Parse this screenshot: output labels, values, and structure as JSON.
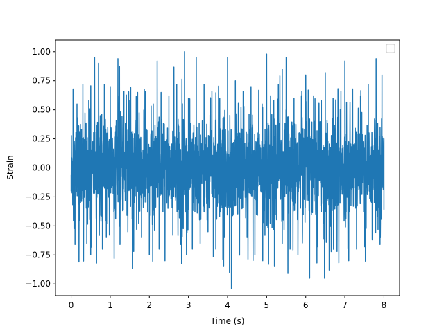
{
  "chart_data": {
    "type": "line",
    "title": "",
    "xlabel": "Time (s)",
    "ylabel": "Strain",
    "xlim": [
      -0.4,
      8.4
    ],
    "ylim": [
      -1.1,
      1.1
    ],
    "x_ticks": [
      0,
      1,
      2,
      3,
      4,
      5,
      6,
      7,
      8
    ],
    "x_tick_labels": [
      "0",
      "1",
      "2",
      "3",
      "4",
      "5",
      "6",
      "7",
      "8"
    ],
    "y_ticks": [
      -1.0,
      -0.75,
      -0.5,
      -0.25,
      0.0,
      0.25,
      0.5,
      0.75,
      1.0
    ],
    "y_tick_labels": [
      "−1.00",
      "−0.75",
      "−0.50",
      "−0.25",
      "0.00",
      "0.25",
      "0.50",
      "0.75",
      "1.00"
    ],
    "grid": false,
    "legend": {
      "placement": "upper-right",
      "entries": []
    },
    "series": [
      {
        "color": "#1f77b4",
        "x_start": 0,
        "x_end": 8,
        "description_values": "dense noise-like strain signal; local extrema sampled below",
        "x": [
          0.0,
          0.05,
          0.1,
          0.15,
          0.2,
          0.3,
          0.4,
          0.45,
          0.5,
          0.6,
          0.65,
          0.7,
          0.8,
          0.85,
          0.9,
          1.0,
          1.1,
          1.2,
          1.25,
          1.35,
          1.45,
          1.5,
          1.6,
          1.7,
          1.8,
          1.9,
          2.0,
          2.1,
          2.2,
          2.25,
          2.3,
          2.4,
          2.5,
          2.6,
          2.7,
          2.8,
          2.9,
          2.95,
          3.0,
          3.1,
          3.2,
          3.3,
          3.4,
          3.5,
          3.6,
          3.7,
          3.8,
          3.9,
          4.0,
          4.05,
          4.1,
          4.2,
          4.3,
          4.4,
          4.5,
          4.6,
          4.7,
          4.8,
          4.9,
          5.0,
          5.05,
          5.1,
          5.2,
          5.3,
          5.4,
          5.5,
          5.6,
          5.7,
          5.8,
          5.9,
          6.0,
          6.1,
          6.2,
          6.3,
          6.4,
          6.5,
          6.6,
          6.7,
          6.8,
          6.9,
          7.0,
          7.1,
          7.2,
          7.3,
          7.4,
          7.5,
          7.6,
          7.7,
          7.8,
          7.9,
          7.95,
          8.0
        ],
        "y": [
          -0.2,
          0.68,
          -0.66,
          0.55,
          -0.81,
          0.72,
          -0.65,
          0.58,
          -0.75,
          0.95,
          -0.82,
          0.9,
          -0.7,
          0.72,
          -0.6,
          0.7,
          -0.78,
          0.62,
          -0.66,
          0.66,
          -0.55,
          0.58,
          -0.72,
          0.65,
          -0.6,
          0.66,
          -0.75,
          0.55,
          0.92,
          -0.7,
          0.65,
          -0.8,
          0.62,
          -0.58,
          0.72,
          -0.66,
          1.0,
          -0.75,
          0.6,
          -0.7,
          0.95,
          -0.65,
          0.72,
          -0.55,
          0.66,
          -0.7,
          0.6,
          -0.85,
          0.95,
          -0.9,
          -1.04,
          0.75,
          -0.72,
          0.66,
          -0.6,
          0.7,
          -0.75,
          0.65,
          -0.8,
          0.98,
          -0.83,
          0.62,
          -0.85,
          0.72,
          -0.65,
          0.95,
          -0.7,
          0.6,
          -0.75,
          0.66,
          0.8,
          -0.95,
          0.62,
          -0.68,
          0.58,
          0.82,
          -0.88,
          0.6,
          -0.72,
          0.66,
          0.92,
          -0.8,
          0.68,
          -0.7,
          0.62,
          -0.68,
          0.72,
          -0.62,
          0.94,
          -0.66,
          0.8,
          -0.36
        ]
      }
    ]
  }
}
